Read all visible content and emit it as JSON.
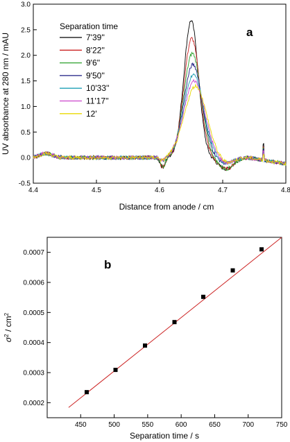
{
  "chart_data": [
    {
      "type": "line",
      "panel_label": "a",
      "xlabel": "Distance from anode / cm",
      "ylabel": "UV absorbance at 280 nm / mAU",
      "xlim": [
        4.4,
        4.8
      ],
      "ylim": [
        -0.5,
        3.0
      ],
      "xticks": [
        "4.4",
        "4.5",
        "4.6",
        "4.7",
        "4.8"
      ],
      "yticks": [
        "-0.5",
        "0.0",
        "0.5",
        "1.0",
        "1.5",
        "2.0",
        "2.5",
        "3.0"
      ],
      "legend_title": "Separation time",
      "legend_position": "top-left",
      "series": [
        {
          "name": "7'39''",
          "color": "#000000",
          "peak_x": 4.65,
          "peak_y": 2.68,
          "sigma": 0.0115
        },
        {
          "name": "8'22''",
          "color": "#cc2222",
          "peak_x": 4.651,
          "peak_y": 2.33,
          "sigma": 0.0125
        },
        {
          "name": "9'6''",
          "color": "#2ca02c",
          "peak_x": 4.652,
          "peak_y": 2.04,
          "sigma": 0.0135
        },
        {
          "name": "9'50''",
          "color": "#1a1a80",
          "peak_x": 4.653,
          "peak_y": 1.82,
          "sigma": 0.0145
        },
        {
          "name": "10'33''",
          "color": "#1ea0b4",
          "peak_x": 4.654,
          "peak_y": 1.62,
          "sigma": 0.0155
        },
        {
          "name": "11'17''",
          "color": "#cc44cc",
          "peak_x": 4.655,
          "peak_y": 1.5,
          "sigma": 0.0165
        },
        {
          "name": "12'",
          "color": "#e8d800",
          "peak_x": 4.657,
          "peak_y": 1.4,
          "sigma": 0.0175
        }
      ]
    },
    {
      "type": "scatter",
      "panel_label": "b",
      "xlabel": "Separation time / s",
      "ylabel": "σ2 / cm2",
      "ylabel_main": "σ",
      "ylabel_sup1": "2",
      "ylabel_unit": " / cm",
      "ylabel_sup2": "2",
      "xlim": [
        400,
        750
      ],
      "ylim": [
        0.00015,
        0.00075
      ],
      "xticks": [
        "450",
        "500",
        "550",
        "600",
        "650",
        "700",
        "750"
      ],
      "yticks": [
        "0.0002",
        "0.0003",
        "0.0004",
        "0.0005",
        "0.0006",
        "0.0007"
      ],
      "points": [
        {
          "x": 459,
          "y": 0.000235
        },
        {
          "x": 502,
          "y": 0.000309
        },
        {
          "x": 546,
          "y": 0.00039
        },
        {
          "x": 590,
          "y": 0.000468
        },
        {
          "x": 633,
          "y": 0.000552
        },
        {
          "x": 677,
          "y": 0.00064
        },
        {
          "x": 720,
          "y": 0.00071
        }
      ],
      "fit_line": {
        "color": "#cc2222",
        "x1": 432,
        "y1": 0.000184,
        "x2": 750,
        "y2": 0.00075
      },
      "marker_color": "#000000"
    }
  ]
}
